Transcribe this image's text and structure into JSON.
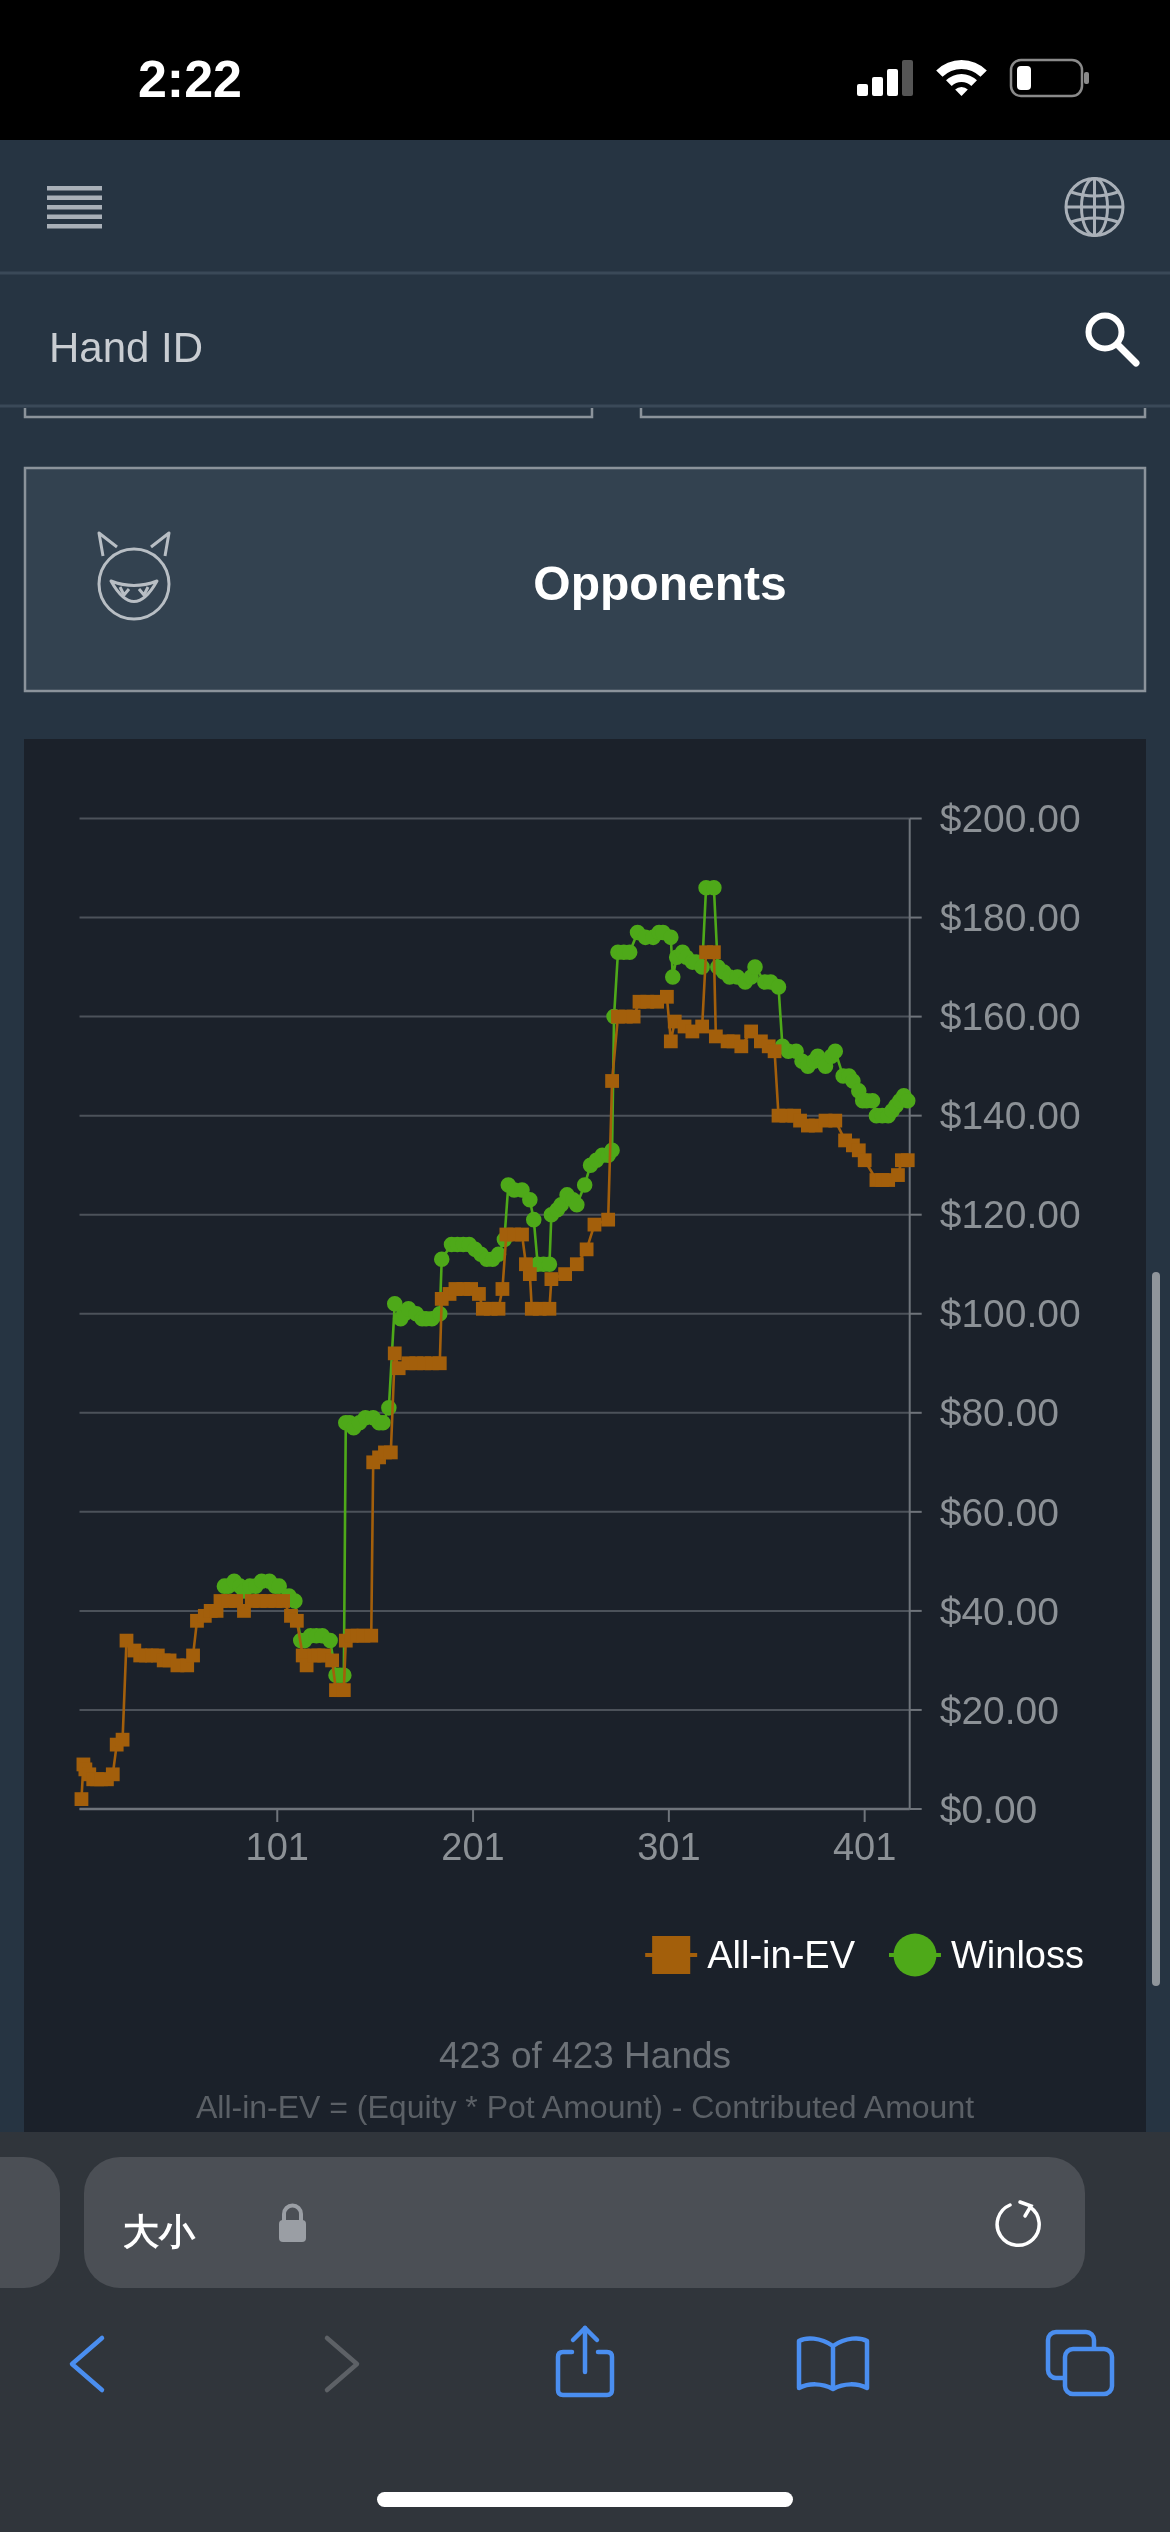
{
  "chart_data": {
    "type": "line",
    "xlim": [
      0,
      424
    ],
    "xticks": [
      101,
      201,
      301,
      401
    ],
    "ylim": [
      0,
      200
    ],
    "yticks": [
      {
        "value": 0,
        "label": "$0.00"
      },
      {
        "value": 20,
        "label": "$20.00"
      },
      {
        "value": 40,
        "label": "$40.00"
      },
      {
        "value": 60,
        "label": "$60.00"
      },
      {
        "value": 80,
        "label": "$80.00"
      },
      {
        "value": 100,
        "label": "$100.00"
      },
      {
        "value": 120,
        "label": "$120.00"
      },
      {
        "value": 140,
        "label": "$140.00"
      },
      {
        "value": 160,
        "label": "$160.00"
      },
      {
        "value": 180,
        "label": "$180.00"
      },
      {
        "value": 200,
        "label": "$200.00"
      }
    ],
    "grid": "y",
    "legend": "bottom right",
    "line_style": "solid",
    "series": [
      {
        "name": "All-in-EV",
        "color": "#a35f0b",
        "marker": "square",
        "x": [
          1,
          2,
          3,
          5,
          7,
          9,
          11,
          14,
          17,
          19,
          22,
          24,
          28,
          31,
          34,
          37,
          40,
          43,
          46,
          50,
          55,
          58,
          60,
          64,
          67,
          70,
          72,
          76,
          80,
          84,
          88,
          92,
          96,
          100,
          104,
          108,
          111,
          114,
          116,
          120,
          122,
          125,
          129,
          131,
          133,
          135,
          136,
          139,
          142,
          145,
          149,
          150,
          153,
          156,
          159,
          161,
          163,
          168,
          172,
          176,
          180,
          184,
          185,
          189,
          192,
          196,
          200,
          204,
          206,
          210,
          214,
          216,
          218,
          222,
          226,
          228,
          230,
          231,
          235,
          240,
          241,
          248,
          254,
          259,
          263,
          270,
          272,
          275,
          279,
          283,
          286,
          290,
          295,
          300,
          302,
          304,
          309,
          313,
          318,
          320,
          324,
          325,
          331,
          334,
          338,
          343,
          348,
          352,
          355,
          357,
          361,
          365,
          368,
          372,
          376,
          381,
          386,
          391,
          395,
          398,
          401,
          407,
          410,
          413,
          418,
          420,
          423
        ],
        "values": [
          2,
          9,
          8,
          7,
          6,
          6,
          6,
          6,
          7,
          13,
          14,
          34,
          32,
          31,
          31,
          31,
          31,
          30,
          30,
          29,
          29,
          31,
          38,
          39,
          40,
          40,
          42,
          42,
          42,
          40,
          42,
          42,
          42,
          42,
          42,
          39,
          38,
          31,
          29,
          31,
          31,
          31,
          30,
          24,
          24,
          24,
          34,
          35,
          35,
          35,
          35,
          70,
          71,
          72,
          72,
          92,
          89,
          90,
          90,
          90,
          90,
          90,
          103,
          104,
          105,
          105,
          105,
          104,
          101,
          101,
          101,
          105,
          116,
          116,
          116,
          110,
          108,
          101,
          101,
          101,
          107,
          108,
          110,
          113,
          118,
          119,
          147,
          160,
          160,
          160,
          163,
          163,
          163,
          164,
          155,
          159,
          158,
          157,
          158,
          173,
          173,
          156,
          155,
          155,
          154,
          157,
          155,
          154,
          153,
          140,
          140,
          140,
          139,
          138,
          138,
          139,
          139,
          135,
          134,
          133,
          131,
          127,
          127,
          127,
          128,
          131,
          131
        ]
      },
      {
        "name": "Winloss",
        "color": "#4ea919",
        "marker": "circle",
        "x": [
          74,
          76,
          79,
          82,
          84,
          87,
          90,
          93,
          97,
          100,
          102,
          107,
          110,
          113,
          115,
          118,
          121,
          124,
          128,
          131,
          133,
          135,
          136,
          138,
          140,
          143,
          146,
          150,
          153,
          155,
          158,
          161,
          164,
          166,
          168,
          172,
          175,
          177,
          180,
          184,
          185,
          190,
          193,
          196,
          199,
          202,
          205,
          208,
          211,
          214,
          217,
          219,
          222,
          226,
          230,
          232,
          234,
          237,
          240,
          241,
          244,
          246,
          249,
          252,
          254,
          258,
          261,
          264,
          267,
          270,
          272,
          273,
          275,
          278,
          281,
          285,
          289,
          293,
          296,
          298,
          302,
          303,
          305,
          308,
          310,
          313,
          315,
          318,
          320,
          324,
          326,
          329,
          332,
          336,
          340,
          343,
          345,
          350,
          353,
          357,
          359,
          362,
          366,
          369,
          372,
          375,
          377,
          379,
          381,
          384,
          386,
          390,
          393,
          395,
          398,
          400,
          402,
          405,
          407,
          410,
          413,
          415,
          417,
          419,
          421,
          423
        ],
        "values": [
          45,
          45,
          46,
          45,
          44,
          45,
          45,
          46,
          46,
          45,
          45,
          43,
          42,
          34,
          34,
          35,
          35,
          35,
          34,
          27,
          27,
          27,
          78,
          78,
          77,
          78,
          79,
          79,
          78,
          78,
          81,
          102,
          99,
          100,
          101,
          100,
          99,
          99,
          99,
          100,
          111,
          114,
          114,
          114,
          114,
          113,
          112,
          111,
          111,
          112,
          115,
          126,
          125,
          125,
          123,
          119,
          110,
          110,
          110,
          120,
          121,
          122,
          124,
          123,
          122,
          126,
          130,
          131,
          132,
          132,
          133,
          160,
          173,
          173,
          173,
          177,
          176,
          176,
          177,
          177,
          176,
          168,
          172,
          173,
          172,
          171,
          171,
          170,
          186,
          186,
          170,
          169,
          168,
          168,
          167,
          168,
          170,
          167,
          167,
          166,
          154,
          153,
          153,
          151,
          150,
          151,
          152,
          151,
          150,
          152,
          153,
          148,
          148,
          147,
          145,
          143,
          143,
          143,
          140,
          140,
          140,
          141,
          142,
          143,
          144,
          143
        ]
      }
    ],
    "annotations": [
      "2:22",
      "Hand ID",
      "Opponents",
      "大小",
      "423 of 423 Hands",
      "All-in-EV = (Equity * Pot Amount) - Contributed Amount"
    ]
  }
}
